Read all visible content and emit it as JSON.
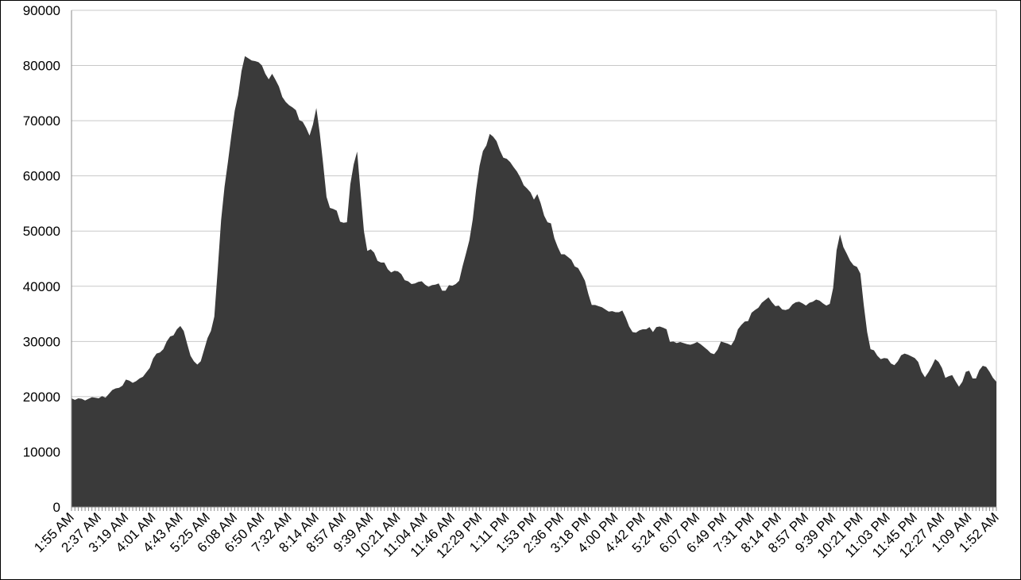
{
  "chart_data": {
    "type": "area",
    "title": "",
    "xlabel": "",
    "ylabel": "",
    "ylim": [
      0,
      90000
    ],
    "yticks": [
      0,
      10000,
      20000,
      30000,
      40000,
      50000,
      60000,
      70000,
      80000,
      90000
    ],
    "grid": "horizontal",
    "legend": "none",
    "colors": {
      "area": "#3a3a3a",
      "grid": "#c8c8c8",
      "axis": "#888888",
      "frame": "#000000",
      "text": "#000000"
    },
    "x_tick_labels": [
      "1:55 AM",
      "2:37 AM",
      "3:19 AM",
      "4:01 AM",
      "4:43 AM",
      "5:25 AM",
      "6:08 AM",
      "6:50 AM",
      "7:32 AM",
      "8:14 AM",
      "8:57 AM",
      "9:39 AM",
      "10:21 AM",
      "11:04 AM",
      "11:46 AM",
      "12:29 PM",
      "1:11 PM",
      "1:53 PM",
      "2:36 PM",
      "3:18 PM",
      "4:00 PM",
      "4:42 PM",
      "5:24 PM",
      "6:07 PM",
      "6:49 PM",
      "7:31 PM",
      "8:14 PM",
      "8:57 PM",
      "9:39 PM",
      "10:21 PM",
      "11:03 PM",
      "11:45 PM",
      "12:27 AM",
      "1:09 AM",
      "1:52 AM"
    ],
    "series": [
      {
        "values": [
          19700,
          19400,
          19700,
          19600,
          19300,
          19600,
          19900,
          19800,
          19700,
          20100,
          19800,
          20500,
          21200,
          21500,
          21600,
          22000,
          23100,
          22900,
          22500,
          22800,
          23300,
          23600,
          24400,
          25200,
          26900,
          27800,
          28000,
          28600,
          30000,
          30900,
          31100,
          32200,
          32800,
          31900,
          29600,
          27400,
          26400,
          25800,
          26400,
          28500,
          30600,
          31900,
          34500,
          43000,
          52000,
          58000,
          62500,
          67300,
          71800,
          74600,
          79000,
          81700,
          81300,
          80900,
          80800,
          80600,
          80000,
          78500,
          77500,
          78500,
          77400,
          76200,
          74300,
          73400,
          72800,
          72400,
          71900,
          70100,
          69800,
          68700,
          67300,
          69300,
          72300,
          67800,
          62200,
          56200,
          54200,
          54000,
          53700,
          51700,
          51500,
          51600,
          58500,
          62100,
          64400,
          57100,
          50000,
          46400,
          46700,
          46100,
          44600,
          44300,
          44300,
          43100,
          42500,
          42800,
          42700,
          42200,
          41100,
          40900,
          40400,
          40500,
          40800,
          40900,
          40300,
          39900,
          40200,
          40300,
          40500,
          39200,
          39200,
          40200,
          40100,
          40400,
          41000,
          43600,
          45900,
          48300,
          52100,
          57500,
          61800,
          64500,
          65500,
          67600,
          67100,
          66300,
          64600,
          63300,
          63100,
          62500,
          61600,
          60800,
          59700,
          58300,
          57700,
          57000,
          55700,
          56700,
          55000,
          52800,
          51600,
          51400,
          48700,
          47100,
          45800,
          45800,
          45300,
          44800,
          43600,
          43300,
          42200,
          41000,
          38600,
          36600,
          36600,
          36400,
          36200,
          35800,
          35400,
          35500,
          35300,
          35300,
          35600,
          34300,
          32700,
          31700,
          31600,
          32000,
          32200,
          32200,
          32600,
          31700,
          32600,
          32700,
          32500,
          32200,
          29900,
          30000,
          29700,
          29900,
          29700,
          29500,
          29400,
          29600,
          29900,
          29500,
          29000,
          28500,
          27900,
          27700,
          28500,
          30000,
          29800,
          29600,
          29300,
          30300,
          32200,
          33000,
          33600,
          33700,
          35200,
          35700,
          36100,
          37000,
          37500,
          38000,
          37100,
          36400,
          36500,
          35800,
          35700,
          35900,
          36700,
          37100,
          37200,
          36900,
          36500,
          37000,
          37200,
          37600,
          37400,
          36900,
          36500,
          36800,
          39700,
          46500,
          49400,
          47100,
          45900,
          44600,
          43800,
          43500,
          42300,
          36600,
          31700,
          28600,
          28400,
          27400,
          26800,
          27000,
          26900,
          26000,
          25700,
          26400,
          27500,
          27800,
          27600,
          27300,
          27000,
          26300,
          24500,
          23500,
          24400,
          25500,
          26800,
          26300,
          25200,
          23400,
          23700,
          23900,
          22800,
          21800,
          22700,
          24500,
          24700,
          23300,
          23300,
          24800,
          25600,
          25400,
          24500,
          23400,
          22700
        ]
      }
    ]
  }
}
